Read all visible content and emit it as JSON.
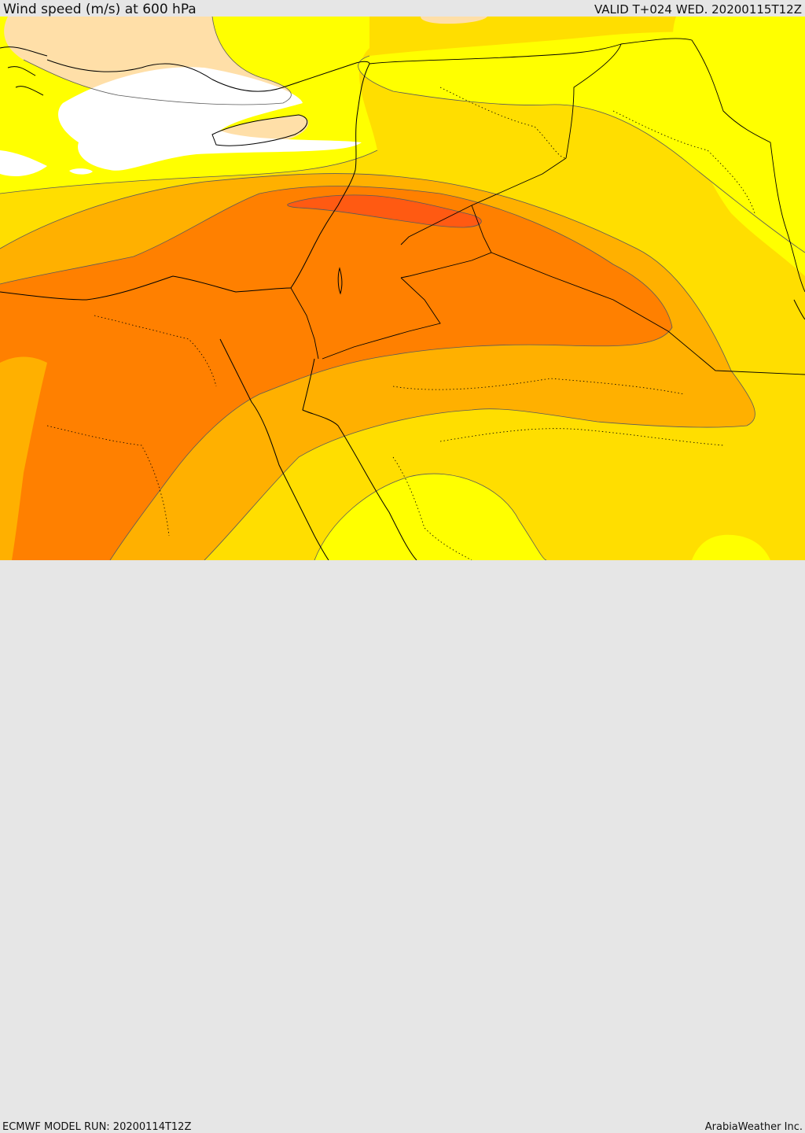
{
  "header": {
    "title": "Wind speed (m/s) at 600 hPa",
    "valid_time": "VALID T+024 WED. 20200115T12Z"
  },
  "footer": {
    "model_run": "ECMWF MODEL RUN: 20200114T12Z",
    "credit": "ArabiaWeather Inc."
  },
  "map": {
    "fill_colors": {
      "calm": "#ffffff",
      "light": "#ffdfa8",
      "moderate": "#ffff00",
      "fresh": "#ffde00",
      "strong": "#ffb000",
      "very_strong": "#ff8000",
      "peak": "#ff5a12"
    },
    "line_colors": {
      "coastline_border": "#000000",
      "contour": "#5a5a5a"
    }
  }
}
